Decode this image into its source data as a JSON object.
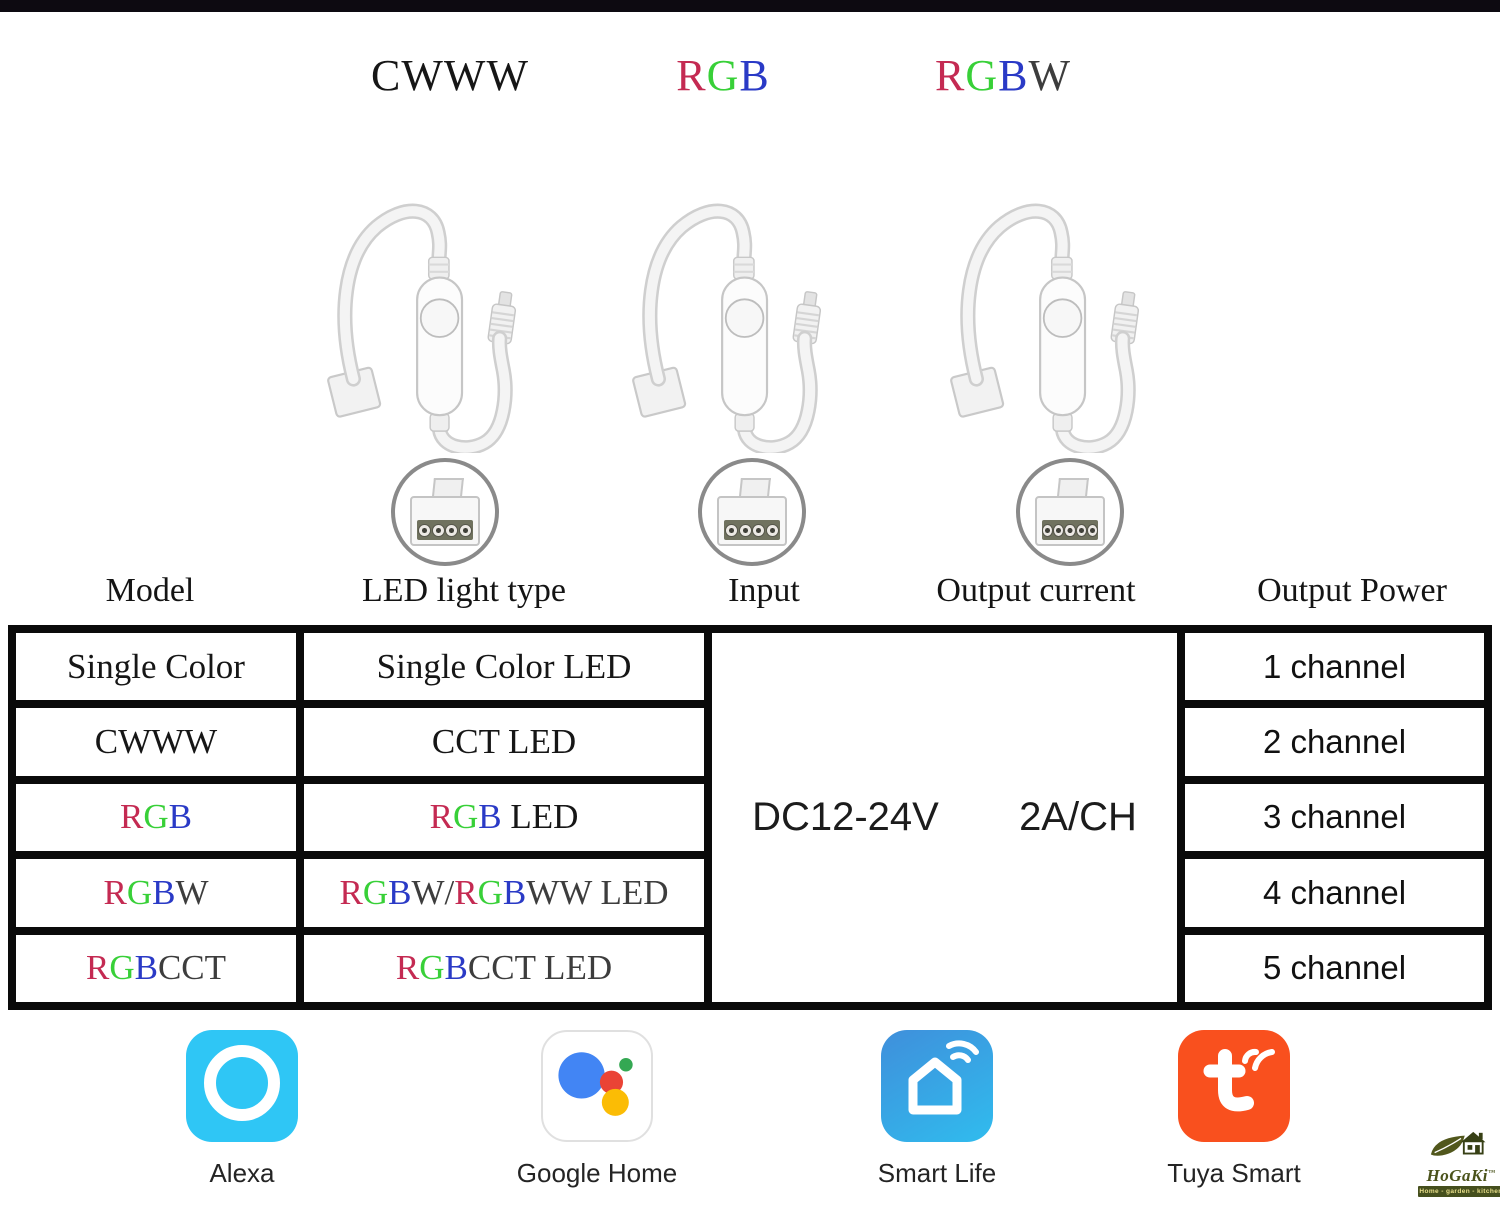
{
  "palette": {
    "red": "#c42a52",
    "green": "#38d038",
    "blue": "#2a3ac6",
    "dark": "#3d3d3d",
    "black": "#161616"
  },
  "variant_labels": [
    {
      "segments": [
        {
          "t": "CWWW",
          "c": "#161616"
        }
      ]
    },
    {
      "segments": [
        {
          "t": "R",
          "c": "#c42a52"
        },
        {
          "t": "G",
          "c": "#38d038"
        },
        {
          "t": "B",
          "c": "#2a3ac6"
        }
      ]
    },
    {
      "segments": [
        {
          "t": "R",
          "c": "#c42a52"
        },
        {
          "t": "G",
          "c": "#38d038"
        },
        {
          "t": "B",
          "c": "#2a3ac6"
        },
        {
          "t": "W",
          "c": "#3d3d3d"
        }
      ]
    }
  ],
  "devices": [
    {
      "variant": "CWWW",
      "connector_pins": 4
    },
    {
      "variant": "RGB",
      "connector_pins": 4
    },
    {
      "variant": "RGBW",
      "connector_pins": 5
    }
  ],
  "table": {
    "headers": [
      "Model",
      "LED light type",
      "Input",
      "Output current",
      "Output Power"
    ],
    "model_rows": [
      [
        {
          "t": "Single Color",
          "c": "#161616"
        }
      ],
      [
        {
          "t": "CWWW",
          "c": "#161616"
        }
      ],
      [
        {
          "t": "R",
          "c": "#c42a52"
        },
        {
          "t": "G",
          "c": "#38d038"
        },
        {
          "t": "B",
          "c": "#2a3ac6"
        }
      ],
      [
        {
          "t": "R",
          "c": "#c42a52"
        },
        {
          "t": "G",
          "c": "#38d038"
        },
        {
          "t": "B",
          "c": "#2a3ac6"
        },
        {
          "t": "W",
          "c": "#3d3d3d"
        }
      ],
      [
        {
          "t": "R",
          "c": "#c42a52"
        },
        {
          "t": "G",
          "c": "#38d038"
        },
        {
          "t": "B",
          "c": "#2a3ac6"
        },
        {
          "t": "CCT",
          "c": "#3d3d3d"
        }
      ]
    ],
    "led_type_rows": [
      [
        {
          "t": "Single Color LED",
          "c": "#161616"
        }
      ],
      [
        {
          "t": "CCT LED",
          "c": "#161616"
        }
      ],
      [
        {
          "t": "R",
          "c": "#c42a52"
        },
        {
          "t": "G",
          "c": "#38d038"
        },
        {
          "t": "B",
          "c": "#2a3ac6"
        },
        {
          "t": " LED",
          "c": "#161616"
        }
      ],
      [
        {
          "t": "R",
          "c": "#c42a52"
        },
        {
          "t": "G",
          "c": "#38d038"
        },
        {
          "t": "B",
          "c": "#2a3ac6"
        },
        {
          "t": "W/",
          "c": "#3d3d3d"
        },
        {
          "t": "R",
          "c": "#c42a52"
        },
        {
          "t": "G",
          "c": "#38d038"
        },
        {
          "t": "B",
          "c": "#2a3ac6"
        },
        {
          "t": "WW LED",
          "c": "#3d3d3d"
        }
      ],
      [
        {
          "t": "R",
          "c": "#c42a52"
        },
        {
          "t": "G",
          "c": "#38d038"
        },
        {
          "t": "B",
          "c": "#2a3ac6"
        },
        {
          "t": "CCT LED",
          "c": "#3d3d3d"
        }
      ]
    ],
    "input_value": "DC12-24V",
    "output_current_value": "2A/CH",
    "power_rows": [
      "1 channel",
      "2 channel",
      "3 channel",
      "4 channel",
      "5 channel"
    ]
  },
  "apps": [
    {
      "label": "Alexa",
      "icon_color": "#2fc6f5"
    },
    {
      "label": "Google Home",
      "icon_color": "#ffffff"
    },
    {
      "label": "Smart Life",
      "icon_color": "#3f8fdb"
    },
    {
      "label": "Tuya Smart",
      "icon_color": "#f9501e"
    }
  ],
  "brand": {
    "name": "HoGaKi",
    "tm": "™",
    "tagline": "Home - garden - kitchen"
  }
}
